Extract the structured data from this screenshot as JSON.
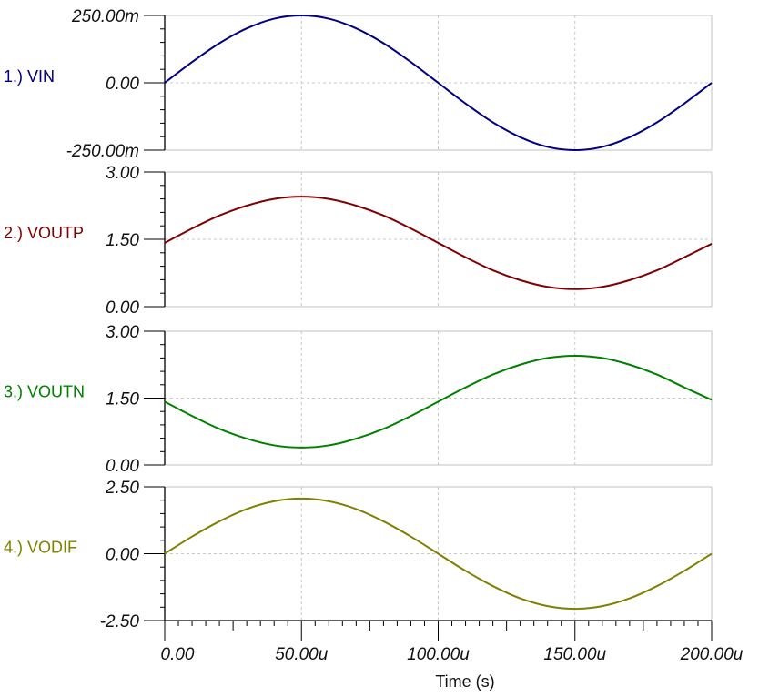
{
  "chart_data": [
    {
      "type": "line",
      "trace_label": "1.) VIN",
      "color": "#000080",
      "ylim": [
        -0.25,
        0.25
      ],
      "yticks": [
        "250.00m",
        "0.00",
        "-250.00m"
      ],
      "x_unit": "s",
      "x": [
        0,
        1e-05,
        2e-05,
        3e-05,
        4e-05,
        5e-05,
        6e-05,
        7e-05,
        8e-05,
        9e-05,
        0.0001,
        0.00011,
        0.00012,
        0.00013,
        0.00014,
        0.00015,
        0.00016,
        0.00017,
        0.00018,
        0.00019,
        0.0002
      ],
      "values": [
        0,
        0.077,
        0.147,
        0.202,
        0.238,
        0.25,
        0.238,
        0.202,
        0.147,
        0.077,
        0,
        -0.077,
        -0.147,
        -0.202,
        -0.238,
        -0.25,
        -0.238,
        -0.202,
        -0.147,
        -0.077,
        0
      ]
    },
    {
      "type": "line",
      "trace_label": "2.) VOUTP",
      "color": "#800000",
      "ylim": [
        0,
        3
      ],
      "yticks": [
        "3.00",
        "1.50",
        "0.00"
      ],
      "x": [
        0,
        1e-05,
        2e-05,
        3e-05,
        4e-05,
        5e-05,
        6e-05,
        7e-05,
        8e-05,
        9e-05,
        0.0001,
        0.00011,
        0.00012,
        0.00013,
        0.00014,
        0.00015,
        0.00016,
        0.00017,
        0.00018,
        0.00019,
        0.0002
      ],
      "values": [
        1.42,
        1.74,
        2.03,
        2.25,
        2.4,
        2.45,
        2.4,
        2.25,
        2.03,
        1.74,
        1.42,
        1.1,
        0.81,
        0.59,
        0.44,
        0.39,
        0.44,
        0.59,
        0.81,
        1.1,
        1.4
      ]
    },
    {
      "type": "line",
      "trace_label": "3.) VOUTN",
      "color": "#008000",
      "ylim": [
        0,
        3
      ],
      "yticks": [
        "3.00",
        "1.50",
        "0.00"
      ],
      "x": [
        0,
        1e-05,
        2e-05,
        3e-05,
        4e-05,
        5e-05,
        6e-05,
        7e-05,
        8e-05,
        9e-05,
        0.0001,
        0.00011,
        0.00012,
        0.00013,
        0.00014,
        0.00015,
        0.00016,
        0.00017,
        0.00018,
        0.00019,
        0.0002
      ],
      "values": [
        1.42,
        1.1,
        0.81,
        0.59,
        0.44,
        0.39,
        0.44,
        0.59,
        0.81,
        1.1,
        1.42,
        1.74,
        2.03,
        2.25,
        2.4,
        2.45,
        2.4,
        2.25,
        2.03,
        1.74,
        1.46
      ]
    },
    {
      "type": "line",
      "trace_label": "4.) VODIF",
      "color": "#808000",
      "ylim": [
        -2.5,
        2.5
      ],
      "yticks": [
        "2.50",
        "0.00",
        "-2.50"
      ],
      "x": [
        0,
        1e-05,
        2e-05,
        3e-05,
        4e-05,
        5e-05,
        6e-05,
        7e-05,
        8e-05,
        9e-05,
        0.0001,
        0.00011,
        0.00012,
        0.00013,
        0.00014,
        0.00015,
        0.00016,
        0.00017,
        0.00018,
        0.00019,
        0.0002
      ],
      "values": [
        0,
        0.64,
        1.21,
        1.67,
        1.96,
        2.06,
        1.96,
        1.67,
        1.21,
        0.64,
        0,
        -0.64,
        -1.21,
        -1.67,
        -1.96,
        -2.06,
        -1.96,
        -1.67,
        -1.21,
        -0.64,
        0
      ],
      "xlabel": "Time (s)",
      "xlim": [
        0,
        0.0002
      ],
      "xticks": [
        "0.00",
        "50.00u",
        "100.00u",
        "150.00u",
        "200.00u"
      ]
    }
  ]
}
